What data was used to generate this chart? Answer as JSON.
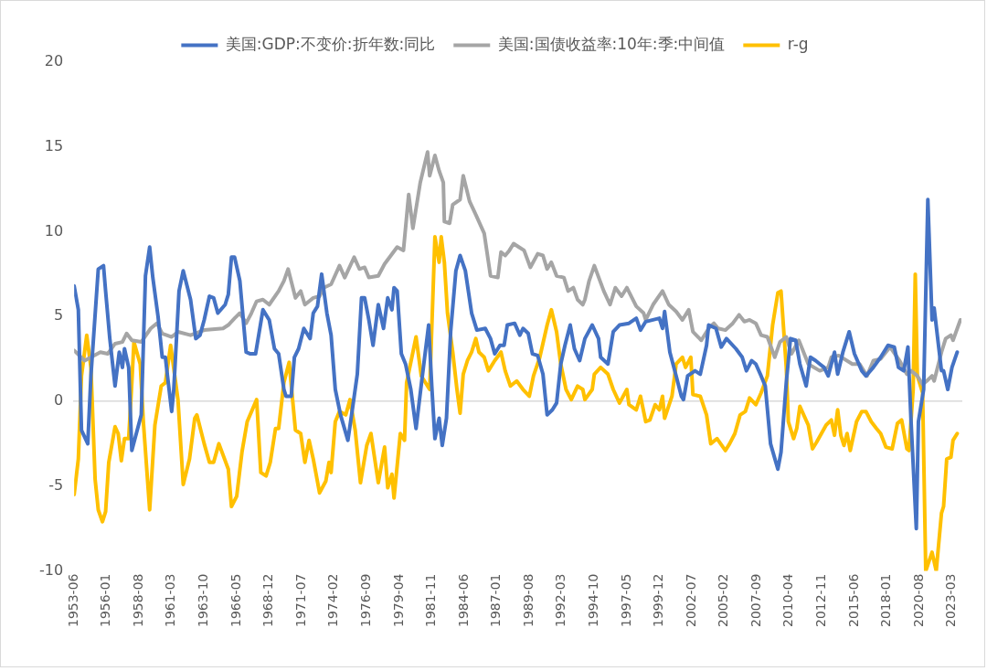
{
  "chart_data": {
    "type": "line",
    "legend": "top",
    "marker": "none",
    "line_style": "solid",
    "xlim": [
      "1953-06",
      "2023-12"
    ],
    "ylim": [
      -10,
      20
    ],
    "yticks": [
      -10,
      -5,
      0,
      5,
      10,
      15,
      20
    ],
    "xticks": [
      "1953-06",
      "1956-01",
      "1958-08",
      "1961-03",
      "1963-10",
      "1966-05",
      "1968-12",
      "1971-07",
      "1974-02",
      "1976-09",
      "1979-04",
      "1981-11",
      "1984-06",
      "1987-01",
      "1989-08",
      "1992-03",
      "1994-10",
      "1997-05",
      "1999-12",
      "2002-07",
      "2005-02",
      "2007-09",
      "2010-04",
      "2012-11",
      "2015-06",
      "2018-01",
      "2020-08",
      "2023-03"
    ],
    "series": [
      {
        "name": "美国:GDP:不变价:折年数:同比",
        "color": "#4472c4",
        "x": [
          "1953-06",
          "1953-10",
          "1954-01",
          "1954-07",
          "1954-10",
          "1955-03",
          "1955-05",
          "1955-10",
          "1955-12",
          "1956-04",
          "1956-09",
          "1957-01",
          "1957-04",
          "1957-06",
          "1957-10",
          "1958-01",
          "1958-10",
          "1959-02",
          "1959-06",
          "1959-09",
          "1960-02",
          "1960-06",
          "1960-09",
          "1960-11",
          "1961-03",
          "1961-05",
          "1961-10",
          "1962-02",
          "1962-09",
          "1963-02",
          "1963-06",
          "1963-10",
          "1964-03",
          "1964-07",
          "1964-11",
          "1965-06",
          "1965-09",
          "1965-12",
          "1966-03",
          "1966-08",
          "1967-02",
          "1967-06",
          "1967-11",
          "1968-06",
          "1968-12",
          "1969-05",
          "1969-09",
          "1970-02",
          "1970-04",
          "1970-09",
          "1970-12",
          "1971-04",
          "1971-09",
          "1972-03",
          "1972-06",
          "1972-10",
          "1973-02",
          "1973-07",
          "1973-11",
          "1974-03",
          "1974-08",
          "1975-03",
          "1975-07",
          "1975-12",
          "1976-04",
          "1976-07",
          "1976-11",
          "1977-03",
          "1977-08",
          "1978-01",
          "1978-05",
          "1978-09",
          "1978-11",
          "1979-02",
          "1979-06",
          "1979-10",
          "1980-03",
          "1980-08",
          "1981-02",
          "1981-08",
          "1981-11",
          "1982-02",
          "1982-06",
          "1982-09",
          "1983-01",
          "1983-05",
          "1983-10",
          "1984-02",
          "1984-07",
          "1985-01",
          "1985-06",
          "1986-02",
          "1986-07",
          "1986-11",
          "1987-04",
          "1987-08",
          "1987-11",
          "1988-06",
          "1988-11",
          "1989-02",
          "1989-07",
          "1989-11",
          "1990-04",
          "1990-09",
          "1991-01",
          "1991-06",
          "1991-10",
          "1992-02",
          "1992-06",
          "1992-11",
          "1993-03",
          "1993-08",
          "1994-01",
          "1994-08",
          "1995-02",
          "1995-04",
          "1995-11",
          "1996-04",
          "1996-10",
          "1997-07",
          "1998-02",
          "1998-06",
          "1998-11",
          "1999-12",
          "2000-03",
          "2000-05",
          "2000-10",
          "2001-04",
          "2001-09",
          "2001-11",
          "2002-03",
          "2002-10",
          "2003-03",
          "2003-09",
          "2003-11",
          "2004-06",
          "2004-11",
          "2005-04",
          "2006-01",
          "2006-07",
          "2006-11",
          "2007-04",
          "2007-08",
          "2008-01",
          "2008-05",
          "2008-10",
          "2009-05",
          "2009-08",
          "2010-01",
          "2010-05",
          "2010-10",
          "2011-02",
          "2011-08",
          "2011-12",
          "2012-05",
          "2012-09",
          "2013-01",
          "2013-05",
          "2013-11",
          "2014-02",
          "2014-07",
          "2015-01",
          "2015-06",
          "2016-01",
          "2016-05",
          "2016-12",
          "2017-07",
          "2018-02",
          "2018-08",
          "2018-12",
          "2019-05",
          "2019-09",
          "2019-12",
          "2020-05",
          "2020-07",
          "2020-12",
          "2021-04",
          "2021-08",
          "2021-10",
          "2022-05",
          "2022-07",
          "2022-11",
          "2023-03",
          "2023-08"
        ],
        "values": [
          6.8,
          5.4,
          -1.7,
          -2.5,
          1.5,
          6.0,
          7.8,
          8.0,
          6.5,
          3.7,
          0.9,
          2.9,
          2.0,
          3.1,
          2.0,
          -2.9,
          -0.8,
          7.4,
          9.1,
          7.3,
          5.0,
          2.6,
          2.6,
          1.5,
          -0.6,
          0.7,
          6.5,
          7.7,
          6.0,
          3.7,
          3.9,
          4.8,
          6.2,
          6.1,
          5.2,
          5.7,
          6.3,
          8.5,
          8.5,
          7.1,
          2.9,
          2.8,
          2.8,
          5.4,
          4.8,
          3.1,
          2.8,
          0.7,
          0.3,
          0.3,
          2.6,
          3.1,
          4.3,
          3.7,
          5.2,
          5.6,
          7.5,
          5.2,
          3.9,
          0.7,
          -0.8,
          -2.3,
          -0.6,
          1.6,
          6.1,
          6.1,
          4.8,
          3.3,
          5.7,
          4.3,
          6.1,
          5.4,
          6.7,
          6.5,
          2.8,
          2.2,
          0.7,
          -1.6,
          1.5,
          4.5,
          0.9,
          -2.2,
          -1.0,
          -2.6,
          -1.0,
          4.1,
          7.7,
          8.6,
          7.7,
          5.2,
          4.2,
          4.3,
          3.7,
          2.8,
          3.3,
          3.3,
          4.5,
          4.6,
          3.9,
          4.3,
          4.0,
          2.8,
          2.7,
          1.6,
          -0.8,
          -0.5,
          -0.1,
          2.2,
          3.3,
          4.5,
          3.1,
          2.4,
          3.7,
          4.5,
          3.7,
          2.6,
          2.2,
          4.1,
          4.5,
          4.6,
          4.9,
          4.2,
          4.7,
          4.9,
          4.3,
          5.3,
          2.9,
          1.5,
          0.3,
          0.1,
          1.5,
          1.8,
          1.6,
          3.3,
          4.5,
          4.3,
          3.2,
          3.7,
          3.1,
          2.6,
          1.8,
          2.4,
          2.2,
          1.5,
          0.9,
          -2.5,
          -4.0,
          -3.0,
          1.1,
          3.7,
          3.6,
          2.2,
          0.9,
          2.6,
          2.4,
          2.2,
          2.0,
          1.5,
          2.9,
          1.6,
          2.9,
          4.1,
          2.8,
          1.8,
          1.5,
          2.0,
          2.6,
          3.3,
          3.2,
          2.0,
          1.8,
          3.2,
          -1.2,
          -7.5,
          -1.2,
          0.7,
          11.9,
          4.8,
          5.5,
          1.8,
          1.8,
          0.7,
          2.0,
          2.9
        ]
      },
      {
        "name": "美国:国债收益率:10年:季:中间值",
        "color": "#a5a5a5",
        "x": [
          "1953-06",
          "1954-04",
          "1955-07",
          "1956-02",
          "1956-09",
          "1957-04",
          "1957-08",
          "1958-01",
          "1958-10",
          "1959-07",
          "1960-01",
          "1960-06",
          "1961-03",
          "1961-09",
          "1962-09",
          "1963-10",
          "1965-04",
          "1965-09",
          "1966-03",
          "1966-08",
          "1967-02",
          "1967-07",
          "1967-12",
          "1968-06",
          "1968-12",
          "1969-09",
          "1970-02",
          "1970-06",
          "1971-01",
          "1971-06",
          "1971-10",
          "1972-06",
          "1972-12",
          "1973-04",
          "1973-11",
          "1974-07",
          "1974-12",
          "1975-09",
          "1976-02",
          "1976-07",
          "1976-11",
          "1977-08",
          "1978-02",
          "1979-02",
          "1979-08",
          "1980-01",
          "1980-05",
          "1980-12",
          "1981-07",
          "1981-09",
          "1982-02",
          "1982-06",
          "1982-10",
          "1982-11",
          "1983-04",
          "1983-07",
          "1984-02",
          "1984-05",
          "1984-11",
          "1985-05",
          "1986-01",
          "1986-07",
          "1987-02",
          "1987-05",
          "1987-09",
          "1988-01",
          "1988-05",
          "1988-10",
          "1989-03",
          "1989-09",
          "1990-04",
          "1990-09",
          "1991-01",
          "1991-05",
          "1991-10",
          "1992-05",
          "1992-09",
          "1993-02",
          "1993-06",
          "1993-11",
          "1994-01",
          "1994-05",
          "1994-10",
          "1995-07",
          "1996-01",
          "1996-06",
          "1996-12",
          "1997-05",
          "1998-02",
          "1998-09",
          "1998-11",
          "1999-06",
          "2000-03",
          "2000-09",
          "2001-04",
          "2001-10",
          "2002-04",
          "2002-08",
          "2003-04",
          "2003-11",
          "2004-04",
          "2004-08",
          "2005-03",
          "2005-10",
          "2006-04",
          "2006-09",
          "2007-02",
          "2007-08",
          "2008-01",
          "2008-07",
          "2009-02",
          "2009-07",
          "2010-01",
          "2010-06",
          "2011-01",
          "2011-10",
          "2012-09",
          "2013-05",
          "2013-08",
          "2014-03",
          "2015-04",
          "2015-11",
          "2016-06",
          "2016-12",
          "2017-07",
          "2017-12",
          "2018-04",
          "2019-01",
          "2019-08",
          "2019-12",
          "2020-06",
          "2020-11",
          "2021-03",
          "2021-08",
          "2021-10",
          "2022-05",
          "2022-09",
          "2023-02",
          "2023-04",
          "2023-11"
        ],
        "values": [
          3.0,
          2.4,
          2.9,
          2.8,
          3.4,
          3.5,
          4.0,
          3.6,
          3.5,
          4.3,
          4.6,
          4.0,
          3.8,
          4.1,
          3.9,
          4.2,
          4.3,
          4.5,
          4.9,
          5.2,
          4.6,
          5.2,
          5.9,
          6.0,
          5.7,
          6.5,
          7.1,
          7.8,
          6.1,
          6.5,
          5.7,
          6.1,
          6.2,
          6.7,
          6.9,
          8.0,
          7.3,
          8.5,
          7.8,
          7.9,
          7.3,
          7.4,
          8.1,
          9.1,
          8.9,
          12.2,
          10.2,
          12.9,
          14.7,
          13.3,
          14.5,
          13.6,
          12.9,
          10.6,
          10.5,
          11.6,
          11.9,
          13.3,
          11.8,
          11.0,
          9.9,
          7.4,
          7.3,
          8.8,
          8.6,
          8.9,
          9.3,
          9.1,
          8.9,
          7.9,
          8.7,
          8.6,
          7.8,
          8.2,
          7.4,
          7.3,
          6.5,
          6.7,
          6.0,
          5.7,
          6.0,
          7.1,
          8.0,
          6.5,
          5.7,
          6.7,
          6.2,
          6.7,
          5.6,
          5.2,
          4.8,
          5.7,
          6.5,
          5.7,
          5.3,
          4.8,
          5.4,
          4.1,
          3.6,
          4.3,
          4.6,
          4.3,
          4.2,
          4.6,
          5.1,
          4.7,
          4.8,
          4.6,
          3.9,
          3.8,
          2.6,
          3.5,
          3.8,
          2.8,
          3.6,
          2.2,
          1.8,
          2.0,
          2.6,
          2.7,
          2.2,
          2.2,
          1.5,
          2.4,
          2.5,
          2.9,
          3.2,
          2.4,
          1.6,
          1.8,
          1.5,
          1.0,
          1.2,
          1.5,
          1.2,
          2.9,
          3.7,
          3.9,
          3.6,
          4.8
        ]
      },
      {
        "name": "r-g",
        "color": "#ffc000",
        "x": [
          "1953-06",
          "1953-10",
          "1954-01",
          "1954-06",
          "1954-10",
          "1955-02",
          "1955-05",
          "1955-09",
          "1955-12",
          "1956-03",
          "1956-09",
          "1956-12",
          "1957-03",
          "1957-06",
          "1957-10",
          "1958-01",
          "1958-03",
          "1958-09",
          "1958-12",
          "1959-06",
          "1959-11",
          "1960-05",
          "1960-09",
          "1961-02",
          "1961-09",
          "1962-02",
          "1962-08",
          "1963-01",
          "1963-03",
          "1963-10",
          "1964-03",
          "1964-07",
          "1964-12",
          "1965-09",
          "1965-12",
          "1966-05",
          "1966-10",
          "1967-03",
          "1967-12",
          "1968-04",
          "1968-09",
          "1969-01",
          "1969-06",
          "1969-09",
          "1970-02",
          "1970-07",
          "1971-01",
          "1971-06",
          "1971-10",
          "1972-02",
          "1972-06",
          "1972-12",
          "1973-06",
          "1973-09",
          "1973-11",
          "1974-03",
          "1974-07",
          "1975-01",
          "1975-05",
          "1975-10",
          "1976-03",
          "1976-09",
          "1977-01",
          "1977-08",
          "1978-02",
          "1978-05",
          "1978-09",
          "1978-11",
          "1979-05",
          "1979-09",
          "1979-11",
          "1980-08",
          "1981-01",
          "1981-09",
          "1982-02",
          "1982-06",
          "1982-08",
          "1982-11",
          "1983-02",
          "1983-07",
          "1983-11",
          "1984-02",
          "1984-05",
          "1984-09",
          "1985-01",
          "1985-05",
          "1985-08",
          "1986-01",
          "1986-05",
          "1986-11",
          "1987-05",
          "1987-09",
          "1988-02",
          "1988-08",
          "1989-02",
          "1989-08",
          "1989-12",
          "1990-06",
          "1991-01",
          "1991-05",
          "1991-10",
          "1992-02",
          "1992-07",
          "1992-12",
          "1993-06",
          "1993-11",
          "1994-01",
          "1994-08",
          "1994-10",
          "1995-04",
          "1995-11",
          "1996-04",
          "1996-10",
          "1997-05",
          "1997-07",
          "1998-02",
          "1998-06",
          "1998-11",
          "1999-03",
          "1999-08",
          "1999-12",
          "2000-03",
          "2000-05",
          "2000-12",
          "2001-04",
          "2001-10",
          "2002-01",
          "2002-06",
          "2002-08",
          "2003-03",
          "2003-09",
          "2004-01",
          "2004-07",
          "2005-03",
          "2005-07",
          "2005-12",
          "2006-05",
          "2006-10",
          "2007-02",
          "2007-08",
          "2008-01",
          "2008-07",
          "2008-12",
          "2009-05",
          "2009-08",
          "2010-01",
          "2010-03",
          "2010-08",
          "2010-11",
          "2011-02",
          "2011-10",
          "2012-02",
          "2012-06",
          "2013-03",
          "2013-08",
          "2013-11",
          "2014-02",
          "2014-05",
          "2014-08",
          "2014-11",
          "2015-02",
          "2015-08",
          "2016-01",
          "2016-05",
          "2016-10",
          "2017-03",
          "2017-07",
          "2017-12",
          "2018-06",
          "2018-11",
          "2019-03",
          "2019-08",
          "2019-10",
          "2020-02",
          "2020-04",
          "2020-06",
          "2020-11",
          "2021-02",
          "2021-08",
          "2021-12",
          "2022-05",
          "2022-07",
          "2022-10",
          "2023-02",
          "2023-04",
          "2023-08"
        ],
        "values": [
          -5.5,
          -3.4,
          1.5,
          3.9,
          2.0,
          -4.6,
          -6.4,
          -7.1,
          -6.5,
          -3.6,
          -1.5,
          -1.9,
          -3.5,
          -2.2,
          -2.2,
          1.1,
          3.5,
          2.2,
          -1.2,
          -6.4,
          -1.4,
          0.9,
          1.1,
          3.3,
          0.1,
          -4.9,
          -3.4,
          -1.0,
          -0.8,
          -2.5,
          -3.6,
          -3.6,
          -2.5,
          -4.0,
          -6.2,
          -5.6,
          -3.0,
          -1.2,
          0.1,
          -4.2,
          -4.4,
          -3.6,
          -1.6,
          -1.6,
          1.1,
          2.3,
          -1.7,
          -1.9,
          -3.6,
          -2.3,
          -3.4,
          -5.4,
          -4.7,
          -3.6,
          -4.2,
          -1.2,
          -0.6,
          -0.8,
          0.1,
          -1.7,
          -4.8,
          -2.6,
          -1.9,
          -4.8,
          -2.7,
          -5.1,
          -4.3,
          -5.7,
          -1.9,
          -2.3,
          1.1,
          3.8,
          1.5,
          0.7,
          9.7,
          8.2,
          9.7,
          8.2,
          5.2,
          2.9,
          0.7,
          -0.7,
          1.6,
          2.4,
          2.9,
          3.7,
          2.9,
          2.6,
          1.8,
          2.4,
          2.9,
          1.8,
          0.9,
          1.2,
          0.7,
          0.3,
          1.5,
          2.6,
          4.5,
          5.4,
          4.1,
          2.2,
          0.7,
          0.1,
          0.9,
          0.7,
          0.1,
          0.7,
          1.6,
          2.0,
          1.6,
          0.7,
          -0.1,
          0.7,
          -0.2,
          -0.5,
          0.3,
          -1.2,
          -1.1,
          -0.2,
          -0.5,
          0.3,
          -1.0,
          0.3,
          2.2,
          2.6,
          2.0,
          2.6,
          0.4,
          0.3,
          -0.8,
          -2.5,
          -2.2,
          -2.9,
          -2.5,
          -1.9,
          -0.8,
          -0.6,
          0.2,
          -0.2,
          0.5,
          1.5,
          4.5,
          6.4,
          6.5,
          2.0,
          -1.2,
          -2.2,
          -1.6,
          -0.3,
          -1.4,
          -2.8,
          -2.4,
          -1.4,
          -1.1,
          -2.0,
          -0.5,
          -2.0,
          -2.6,
          -1.9,
          -2.9,
          -1.2,
          -0.6,
          -0.6,
          -1.2,
          -1.6,
          -1.9,
          -2.7,
          -2.8,
          -1.3,
          -1.1,
          -2.8,
          -2.9,
          0.7,
          7.5,
          1.5,
          0.5,
          -10.0,
          -8.9,
          -10.0,
          -6.6,
          -6.2,
          -3.4,
          -3.3,
          -2.3,
          -1.9
        ]
      }
    ]
  }
}
